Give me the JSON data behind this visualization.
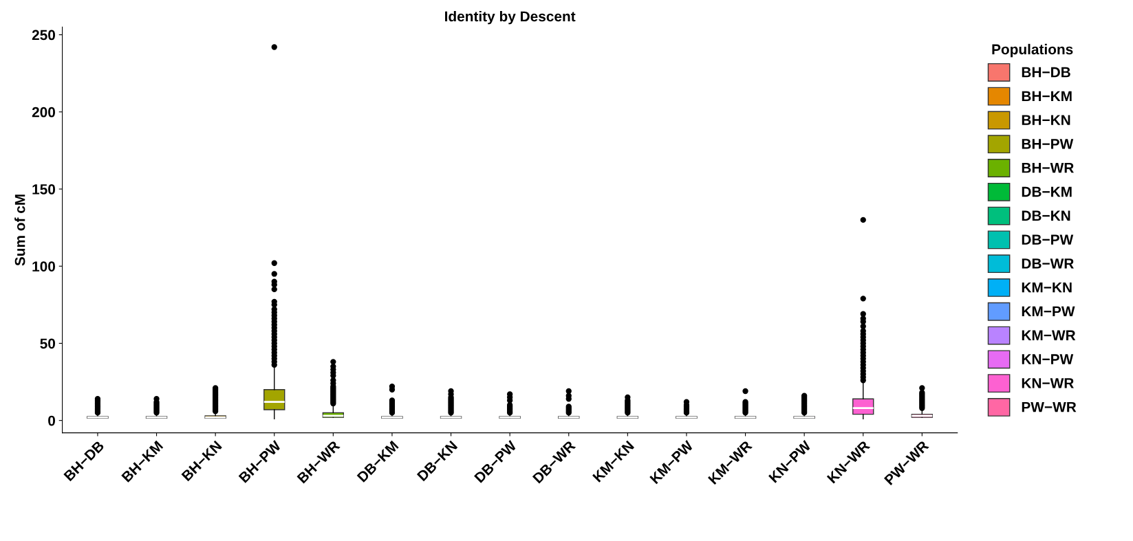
{
  "chart_data": {
    "type": "box",
    "title": "Identity by Descent",
    "ylabel": "Sum of cM",
    "legend_title": "Populations",
    "legend": "right",
    "grid": false,
    "categories": [
      "BH−DB",
      "BH−KM",
      "BH−KN",
      "BH−PW",
      "BH−WR",
      "DB−KM",
      "DB−KN",
      "DB−PW",
      "DB−WR",
      "KM−KN",
      "KM−PW",
      "KM−WR",
      "KN−PW",
      "KN−WR",
      "PW−WR"
    ],
    "series": [
      {
        "name": "BH−DB",
        "color": "#f8766d",
        "boxes": [
          {
            "low": 1.5,
            "q1": 1.5,
            "median": 2,
            "q3": 2.5,
            "high": 4,
            "outliers": [
              5,
              6,
              7,
              8,
              9,
              10,
              11,
              12,
              13,
              14
            ]
          },
          null,
          null,
          null,
          null,
          null,
          null,
          null,
          null,
          null,
          null,
          null,
          null,
          null,
          null
        ]
      },
      {
        "name": "BH−KM",
        "color": "#e58700",
        "boxes": [
          null,
          {
            "low": 1.5,
            "q1": 1.5,
            "median": 2,
            "q3": 2.5,
            "high": 4,
            "outliers": [
              5,
              6,
              7,
              8,
              9,
              10,
              11,
              12,
              14
            ]
          },
          null,
          null,
          null,
          null,
          null,
          null,
          null,
          null,
          null,
          null,
          null,
          null,
          null
        ]
      },
      {
        "name": "BH−KN",
        "color": "#c99800",
        "boxes": [
          null,
          null,
          {
            "low": 1.5,
            "q1": 1.5,
            "median": 2,
            "q3": 3,
            "high": 5,
            "outliers": [
              6,
              7,
              8,
              9,
              10,
              11,
              12,
              13,
              14,
              15,
              16,
              17,
              18,
              19,
              20,
              21
            ]
          },
          null,
          null,
          null,
          null,
          null,
          null,
          null,
          null,
          null,
          null,
          null,
          null
        ]
      },
      {
        "name": "BH−PW",
        "color": "#a3a500",
        "boxes": [
          null,
          null,
          null,
          {
            "low": 1,
            "q1": 7,
            "median": 12,
            "q3": 20,
            "high": 34,
            "outliers": [
              36,
              38,
              40,
              42,
              44,
              46,
              48,
              50,
              52,
              54,
              56,
              58,
              60,
              62,
              64,
              66,
              68,
              70,
              72,
              75,
              77,
              85,
              88,
              90,
              95,
              102,
              242
            ]
          },
          null,
          null,
          null,
          null,
          null,
          null,
          null,
          null,
          null,
          null,
          null
        ]
      },
      {
        "name": "BH−WR",
        "color": "#6bb100",
        "boxes": [
          null,
          null,
          null,
          null,
          {
            "low": 2,
            "q1": 2,
            "median": 3,
            "q3": 5,
            "high": 10,
            "outliers": [
              11,
              12,
              13,
              14,
              15,
              16,
              17,
              18,
              19,
              20,
              21,
              22,
              24,
              26,
              29,
              31,
              33,
              35,
              38
            ]
          },
          null,
          null,
          null,
          null,
          null,
          null,
          null,
          null,
          null,
          null
        ]
      },
      {
        "name": "DB−KM",
        "color": "#00ba38",
        "boxes": [
          null,
          null,
          null,
          null,
          null,
          {
            "low": 1.5,
            "q1": 1.5,
            "median": 2,
            "q3": 2.5,
            "high": 4,
            "outliers": [
              5,
              6,
              7,
              8,
              9,
              10,
              11,
              12,
              13,
              20,
              22
            ]
          },
          null,
          null,
          null,
          null,
          null,
          null,
          null,
          null,
          null
        ]
      },
      {
        "name": "DB−KN",
        "color": "#00bf7d",
        "boxes": [
          null,
          null,
          null,
          null,
          null,
          null,
          {
            "low": 1.5,
            "q1": 1.5,
            "median": 2,
            "q3": 2.5,
            "high": 4,
            "outliers": [
              5,
              6,
              7,
              8,
              9,
              10,
              11,
              12,
              13,
              14,
              15,
              17,
              19
            ]
          },
          null,
          null,
          null,
          null,
          null,
          null,
          null,
          null
        ]
      },
      {
        "name": "DB−PW",
        "color": "#00c0af",
        "boxes": [
          null,
          null,
          null,
          null,
          null,
          null,
          null,
          {
            "low": 1.5,
            "q1": 1.5,
            "median": 2,
            "q3": 2.5,
            "high": 4,
            "outliers": [
              5,
              6,
              7,
              8,
              9,
              10,
              13,
              15,
              17
            ]
          },
          null,
          null,
          null,
          null,
          null,
          null,
          null
        ]
      },
      {
        "name": "DB−WR",
        "color": "#00bcd8",
        "boxes": [
          null,
          null,
          null,
          null,
          null,
          null,
          null,
          null,
          {
            "low": 1.5,
            "q1": 1.5,
            "median": 2,
            "q3": 2.5,
            "high": 4,
            "outliers": [
              5,
              6,
              7,
              8,
              9,
              14,
              16,
              19
            ]
          },
          null,
          null,
          null,
          null,
          null,
          null
        ]
      },
      {
        "name": "KM−KN",
        "color": "#00b0f6",
        "boxes": [
          null,
          null,
          null,
          null,
          null,
          null,
          null,
          null,
          null,
          {
            "low": 1.5,
            "q1": 1.5,
            "median": 2,
            "q3": 2.5,
            "high": 4,
            "outliers": [
              5,
              6,
              7,
              8,
              9,
              10,
              11,
              12,
              13,
              15
            ]
          },
          null,
          null,
          null,
          null,
          null
        ]
      },
      {
        "name": "KM−PW",
        "color": "#619cff",
        "boxes": [
          null,
          null,
          null,
          null,
          null,
          null,
          null,
          null,
          null,
          null,
          {
            "low": 1.5,
            "q1": 1.5,
            "median": 2,
            "q3": 2.5,
            "high": 4,
            "outliers": [
              5,
              6,
              7,
              8,
              9,
              10,
              12
            ]
          },
          null,
          null,
          null,
          null
        ]
      },
      {
        "name": "KM−WR",
        "color": "#b983ff",
        "boxes": [
          null,
          null,
          null,
          null,
          null,
          null,
          null,
          null,
          null,
          null,
          null,
          {
            "low": 1.5,
            "q1": 1.5,
            "median": 2,
            "q3": 2.5,
            "high": 4,
            "outliers": [
              5,
              6,
              7,
              8,
              9,
              10,
              11,
              12,
              19
            ]
          },
          null,
          null,
          null
        ]
      },
      {
        "name": "KN−PW",
        "color": "#e76bf3",
        "boxes": [
          null,
          null,
          null,
          null,
          null,
          null,
          null,
          null,
          null,
          null,
          null,
          null,
          {
            "low": 1.5,
            "q1": 1.5,
            "median": 2,
            "q3": 2.5,
            "high": 4,
            "outliers": [
              5,
              6,
              7,
              8,
              9,
              10,
              11,
              12,
              13,
              14,
              15,
              16
            ]
          },
          null,
          null
        ]
      },
      {
        "name": "KN−WR",
        "color": "#fd61d1",
        "boxes": [
          null,
          null,
          null,
          null,
          null,
          null,
          null,
          null,
          null,
          null,
          null,
          null,
          null,
          {
            "low": 1,
            "q1": 4,
            "median": 8,
            "q3": 14,
            "high": 25,
            "outliers": [
              26,
              28,
              30,
              32,
              34,
              36,
              38,
              40,
              42,
              44,
              46,
              48,
              50,
              52,
              54,
              56,
              58,
              61,
              64,
              66,
              69,
              79,
              130
            ]
          },
          null
        ]
      },
      {
        "name": "PW−WR",
        "color": "#ff67a4",
        "boxes": [
          null,
          null,
          null,
          null,
          null,
          null,
          null,
          null,
          null,
          null,
          null,
          null,
          null,
          null,
          {
            "low": 2,
            "q1": 2,
            "median": 3,
            "q3": 4,
            "high": 7,
            "outliers": [
              8,
              9,
              10,
              11,
              12,
              13,
              14,
              15,
              16,
              17,
              18,
              21
            ]
          }
        ]
      }
    ],
    "ylim": [
      -8,
      255
    ],
    "yticks": [
      0,
      50,
      100,
      150,
      200,
      250
    ]
  }
}
